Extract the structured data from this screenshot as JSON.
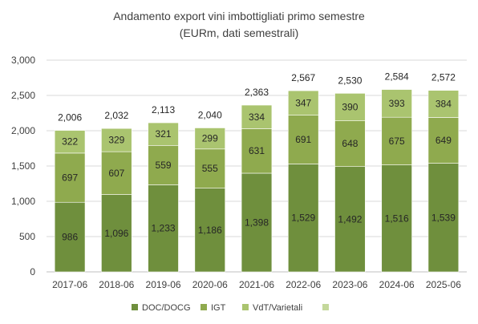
{
  "chart_data": {
    "type": "bar",
    "stacked": true,
    "title": "Andamento export vini imbottigliati primo semestre",
    "subtitle": "(EURm, dati semestrali)",
    "categories": [
      "2017-06",
      "2018-06",
      "2019-06",
      "2020-06",
      "2021-06",
      "2022-06",
      "2023-06",
      "2024-06",
      "2025-06"
    ],
    "series": [
      {
        "name": "DOC/DOCG",
        "color": "#6f8f3d",
        "values": [
          986,
          1096,
          1233,
          1186,
          1398,
          1529,
          1492,
          1516,
          1539
        ]
      },
      {
        "name": "IGT",
        "color": "#8faa4e",
        "values": [
          697,
          607,
          559,
          555,
          631,
          691,
          648,
          675,
          649
        ]
      },
      {
        "name": "VdT/Varietali",
        "color": "#aac46f",
        "values": [
          322,
          329,
          321,
          299,
          334,
          347,
          390,
          393,
          384
        ]
      },
      {
        "name": "",
        "color": "#c4d89b",
        "values": [
          null,
          null,
          null,
          null,
          null,
          null,
          null,
          null,
          null
        ]
      }
    ],
    "totals": [
      "2,006",
      "2,032",
      "2,113",
      "2,040",
      "2,363",
      "2,567",
      "2,530",
      "2,584",
      "2,572"
    ],
    "segment_labels": [
      [
        "986",
        "1,096",
        "1,233",
        "1,186",
        "1,398",
        "1,529",
        "1,492",
        "1,516",
        "1,539"
      ],
      [
        "697",
        "607",
        "559",
        "555",
        "631",
        "691",
        "648",
        "675",
        "649"
      ],
      [
        "322",
        "329",
        "321",
        "299",
        "334",
        "347",
        "390",
        "393",
        "384"
      ]
    ],
    "ylim": [
      0,
      3000
    ],
    "yticks": [
      0,
      500,
      1000,
      1500,
      2000,
      2500,
      3000
    ],
    "ytick_labels": [
      "0",
      "500",
      "1,000",
      "1,500",
      "2,000",
      "2,500",
      "3,000"
    ],
    "grid": true,
    "legend_position": "bottom"
  }
}
